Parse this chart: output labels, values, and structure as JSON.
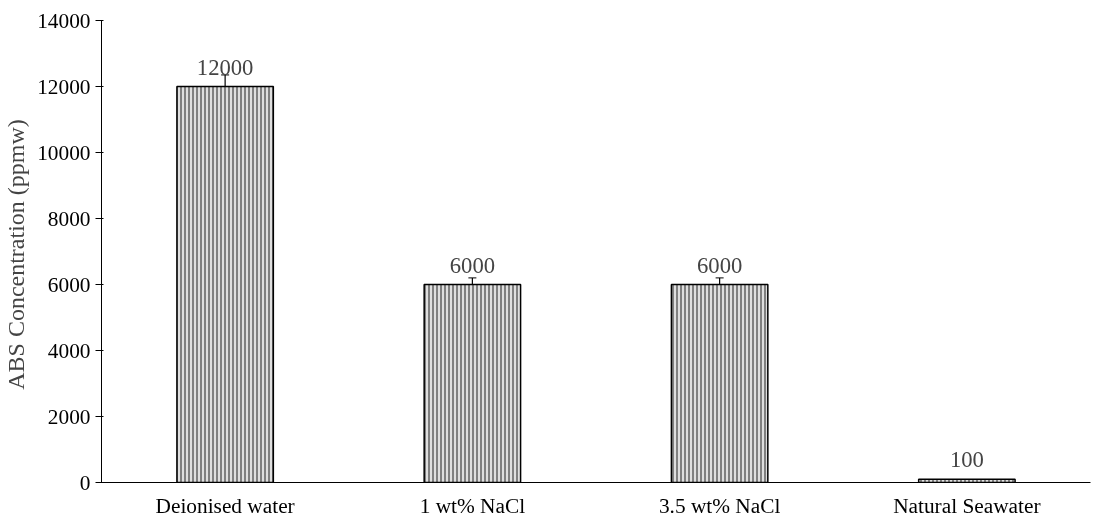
{
  "chart_data": {
    "type": "bar",
    "ylabel": "ABS Concentration  (ppmw)",
    "categories": [
      "Deionised water",
      "1 wt% NaCl",
      "3.5 wt% NaCl",
      "Natural Seawater"
    ],
    "values": [
      12000,
      6000,
      6000,
      100
    ],
    "errors": [
      350,
      200,
      200,
      null
    ],
    "color": "#808080",
    "ylim": [
      0,
      14000
    ],
    "yticks": [
      0,
      2000,
      4000,
      6000,
      8000,
      10000,
      12000,
      14000
    ],
    "grid": false,
    "data_labels": true
  }
}
